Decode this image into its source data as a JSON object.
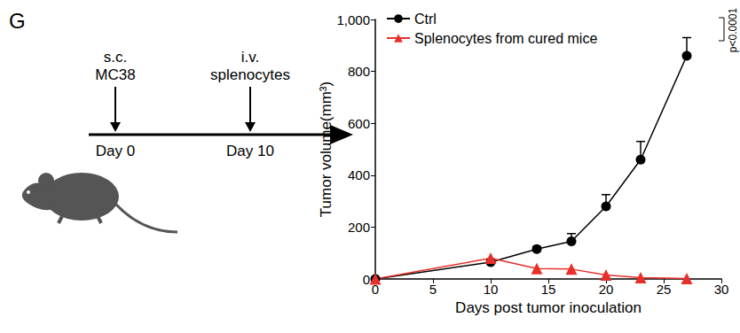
{
  "panel_label": "G",
  "schematic": {
    "events": [
      {
        "lines": [
          "s.c.",
          "MC38"
        ],
        "label": "Day 0"
      },
      {
        "lines": [
          "i.v.",
          "splenocytes"
        ],
        "label": "Day 10"
      }
    ]
  },
  "chart_data": {
    "type": "line",
    "x_label": "Days post tumor inoculation",
    "y_label": "Tumor volume(mm³)",
    "xlim": [
      0,
      30
    ],
    "xticks": [
      0,
      5,
      10,
      15,
      20,
      25,
      30
    ],
    "ylim": [
      0,
      1000
    ],
    "yticks": [
      0,
      200,
      400,
      600,
      800,
      1000
    ],
    "grid": false,
    "legend": "top-left",
    "annotation": "p<0.0001",
    "series": [
      {
        "name": "Ctrl",
        "color": "#000000",
        "marker": "circle",
        "x": [
          0,
          10,
          14,
          17,
          20,
          23,
          27
        ],
        "values": [
          0,
          65,
          115,
          145,
          280,
          460,
          860
        ],
        "errors": [
          0,
          10,
          10,
          30,
          45,
          70,
          70
        ]
      },
      {
        "name": "Splenocytes from cured mice",
        "color": "#e8302a",
        "marker": "triangle",
        "x": [
          0,
          10,
          14,
          17,
          20,
          23,
          27
        ],
        "values": [
          0,
          80,
          40,
          38,
          15,
          5,
          2
        ]
      }
    ]
  }
}
